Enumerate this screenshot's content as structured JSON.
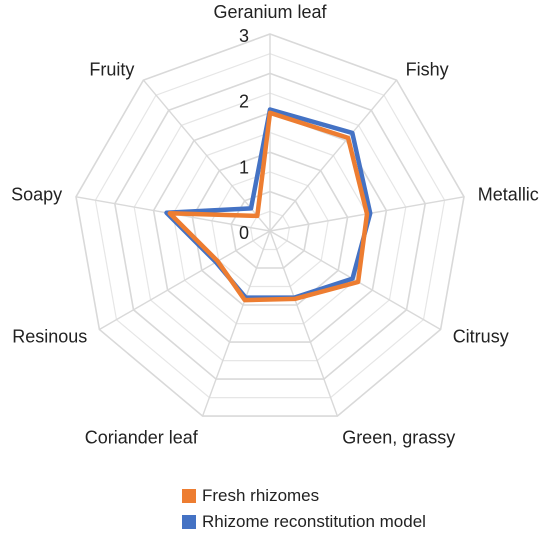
{
  "chart_data": {
    "type": "radar",
    "axes": [
      "Geranium leaf",
      "Fishy",
      "Metallic",
      "Citrusy",
      "Green, grassy",
      "Coriander leaf",
      "Resinous",
      "Soapy",
      "Fruity"
    ],
    "range": [
      0,
      3
    ],
    "ticks": [
      "0",
      "1",
      "2",
      "3"
    ],
    "grid": true,
    "legend_position": "bottom",
    "series": [
      {
        "name": "Rhizome reconstitution model",
        "color": "#4472C4",
        "values": [
          1.85,
          1.95,
          1.55,
          1.45,
          1.08,
          1.08,
          0.95,
          1.6,
          0.45
        ]
      },
      {
        "name": "Fresh rhizomes",
        "color": "#ED7D31",
        "values": [
          1.8,
          1.85,
          1.5,
          1.55,
          1.1,
          1.12,
          0.92,
          1.55,
          0.3
        ]
      }
    ],
    "legend": [
      "Fresh rhizomes",
      "Rhizome reconstitution model"
    ]
  }
}
